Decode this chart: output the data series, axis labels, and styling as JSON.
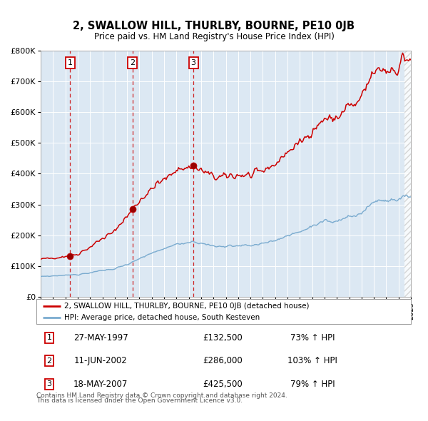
{
  "title": "2, SWALLOW HILL, THURLBY, BOURNE, PE10 0JB",
  "subtitle": "Price paid vs. HM Land Registry's House Price Index (HPI)",
  "legend_line1": "2, SWALLOW HILL, THURLBY, BOURNE, PE10 0JB (detached house)",
  "legend_line2": "HPI: Average price, detached house, South Kesteven",
  "transactions": [
    {
      "num": 1,
      "date_label": "27-MAY-1997",
      "price": 132500,
      "pct": "73% ↑ HPI",
      "year": 1997.38
    },
    {
      "num": 2,
      "date_label": "11-JUN-2002",
      "price": 286000,
      "pct": "103% ↑ HPI",
      "year": 2002.44
    },
    {
      "num": 3,
      "date_label": "18-MAY-2007",
      "price": 425500,
      "pct": "79% ↑ HPI",
      "year": 2007.38
    }
  ],
  "footnote1": "Contains HM Land Registry data © Crown copyright and database right 2024.",
  "footnote2": "This data is licensed under the Open Government Licence v3.0.",
  "xmin": 1995,
  "xmax": 2025,
  "ymin": 0,
  "ymax": 800000,
  "red_color": "#cc0000",
  "blue_color": "#7aabcf",
  "background_color": "#dce8f3"
}
